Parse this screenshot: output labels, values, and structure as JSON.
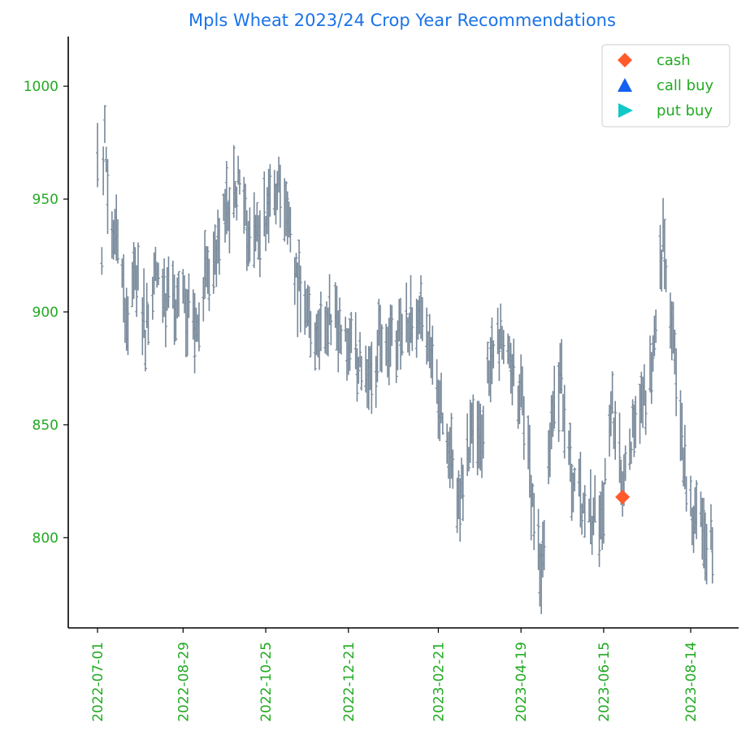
{
  "chart_data": {
    "type": "ohlc",
    "title": "Mpls Wheat 2023/24 Crop Year Recommendations",
    "xlabel": "",
    "ylabel": "",
    "ylim": [
      760,
      1022
    ],
    "xlim": [
      "2022-06-25",
      "2023-09-06"
    ],
    "grid": false,
    "legend_position": "top-right",
    "colors": {
      "title": "#1a73e8",
      "tick_labels": "#22aa22",
      "bars": "#778899",
      "axis": "#000000",
      "cash": "#ff5a2b",
      "call_buy": "#1560f0",
      "put_buy": "#11c8c8"
    },
    "x_ticks": [
      "2022-07-01",
      "2022-08-29",
      "2022-10-25",
      "2022-12-21",
      "2023-02-21",
      "2023-04-19",
      "2023-06-15",
      "2023-08-14"
    ],
    "y_ticks": [
      800,
      850,
      900,
      950,
      1000
    ],
    "legend": [
      {
        "label": "cash",
        "marker": "diamond",
        "color": "#ff5a2b"
      },
      {
        "label": "call buy",
        "marker": "triangle-up",
        "color": "#1560f0"
      },
      {
        "label": "put buy",
        "marker": "triangle-right",
        "color": "#11c8c8"
      }
    ],
    "anchors": [
      [
        "2022-07-01",
        968
      ],
      [
        "2022-07-04",
        915
      ],
      [
        "2022-07-06",
        990
      ],
      [
        "2022-07-10",
        925
      ],
      [
        "2022-07-15",
        940
      ],
      [
        "2022-07-21",
        892
      ],
      [
        "2022-07-27",
        918
      ],
      [
        "2022-08-03",
        893
      ],
      [
        "2022-08-10",
        920
      ],
      [
        "2022-08-17",
        900
      ],
      [
        "2022-08-24",
        905
      ],
      [
        "2022-08-31",
        903
      ],
      [
        "2022-09-07",
        893
      ],
      [
        "2022-09-15",
        920
      ],
      [
        "2022-09-22",
        932
      ],
      [
        "2022-09-29",
        948
      ],
      [
        "2022-10-06",
        955
      ],
      [
        "2022-10-13",
        940
      ],
      [
        "2022-10-20",
        932
      ],
      [
        "2022-10-27",
        945
      ],
      [
        "2022-11-03",
        955
      ],
      [
        "2022-11-10",
        932
      ],
      [
        "2022-11-17",
        910
      ],
      [
        "2022-11-24",
        893
      ],
      [
        "2022-12-01",
        888
      ],
      [
        "2022-12-08",
        895
      ],
      [
        "2022-12-15",
        892
      ],
      [
        "2022-12-22",
        882
      ],
      [
        "2022-12-29",
        875
      ],
      [
        "2023-01-05",
        872
      ],
      [
        "2023-01-12",
        885
      ],
      [
        "2023-01-19",
        888
      ],
      [
        "2023-01-26",
        895
      ],
      [
        "2023-02-02",
        895
      ],
      [
        "2023-02-09",
        898
      ],
      [
        "2023-02-16",
        880
      ],
      [
        "2023-02-23",
        852
      ],
      [
        "2023-03-01",
        835
      ],
      [
        "2023-03-08",
        815
      ],
      [
        "2023-03-15",
        845
      ],
      [
        "2023-03-22",
        838
      ],
      [
        "2023-03-29",
        880
      ],
      [
        "2023-04-05",
        895
      ],
      [
        "2023-04-12",
        872
      ],
      [
        "2023-04-19",
        860
      ],
      [
        "2023-04-26",
        822
      ],
      [
        "2023-05-03",
        778
      ],
      [
        "2023-05-10",
        848
      ],
      [
        "2023-05-17",
        868
      ],
      [
        "2023-05-24",
        828
      ],
      [
        "2023-05-31",
        812
      ],
      [
        "2023-06-07",
        808
      ],
      [
        "2023-06-14",
        812
      ],
      [
        "2023-06-21",
        860
      ],
      [
        "2023-06-28",
        820
      ],
      [
        "2023-07-05",
        848
      ],
      [
        "2023-07-12",
        858
      ],
      [
        "2023-07-19",
        878
      ],
      [
        "2023-07-26",
        935
      ],
      [
        "2023-08-02",
        890
      ],
      [
        "2023-08-09",
        835
      ],
      [
        "2023-08-16",
        812
      ],
      [
        "2023-08-23",
        802
      ],
      [
        "2023-08-29",
        800
      ]
    ],
    "recommendations": [
      {
        "type": "cash",
        "date": "2023-06-28",
        "price": 818
      }
    ]
  }
}
